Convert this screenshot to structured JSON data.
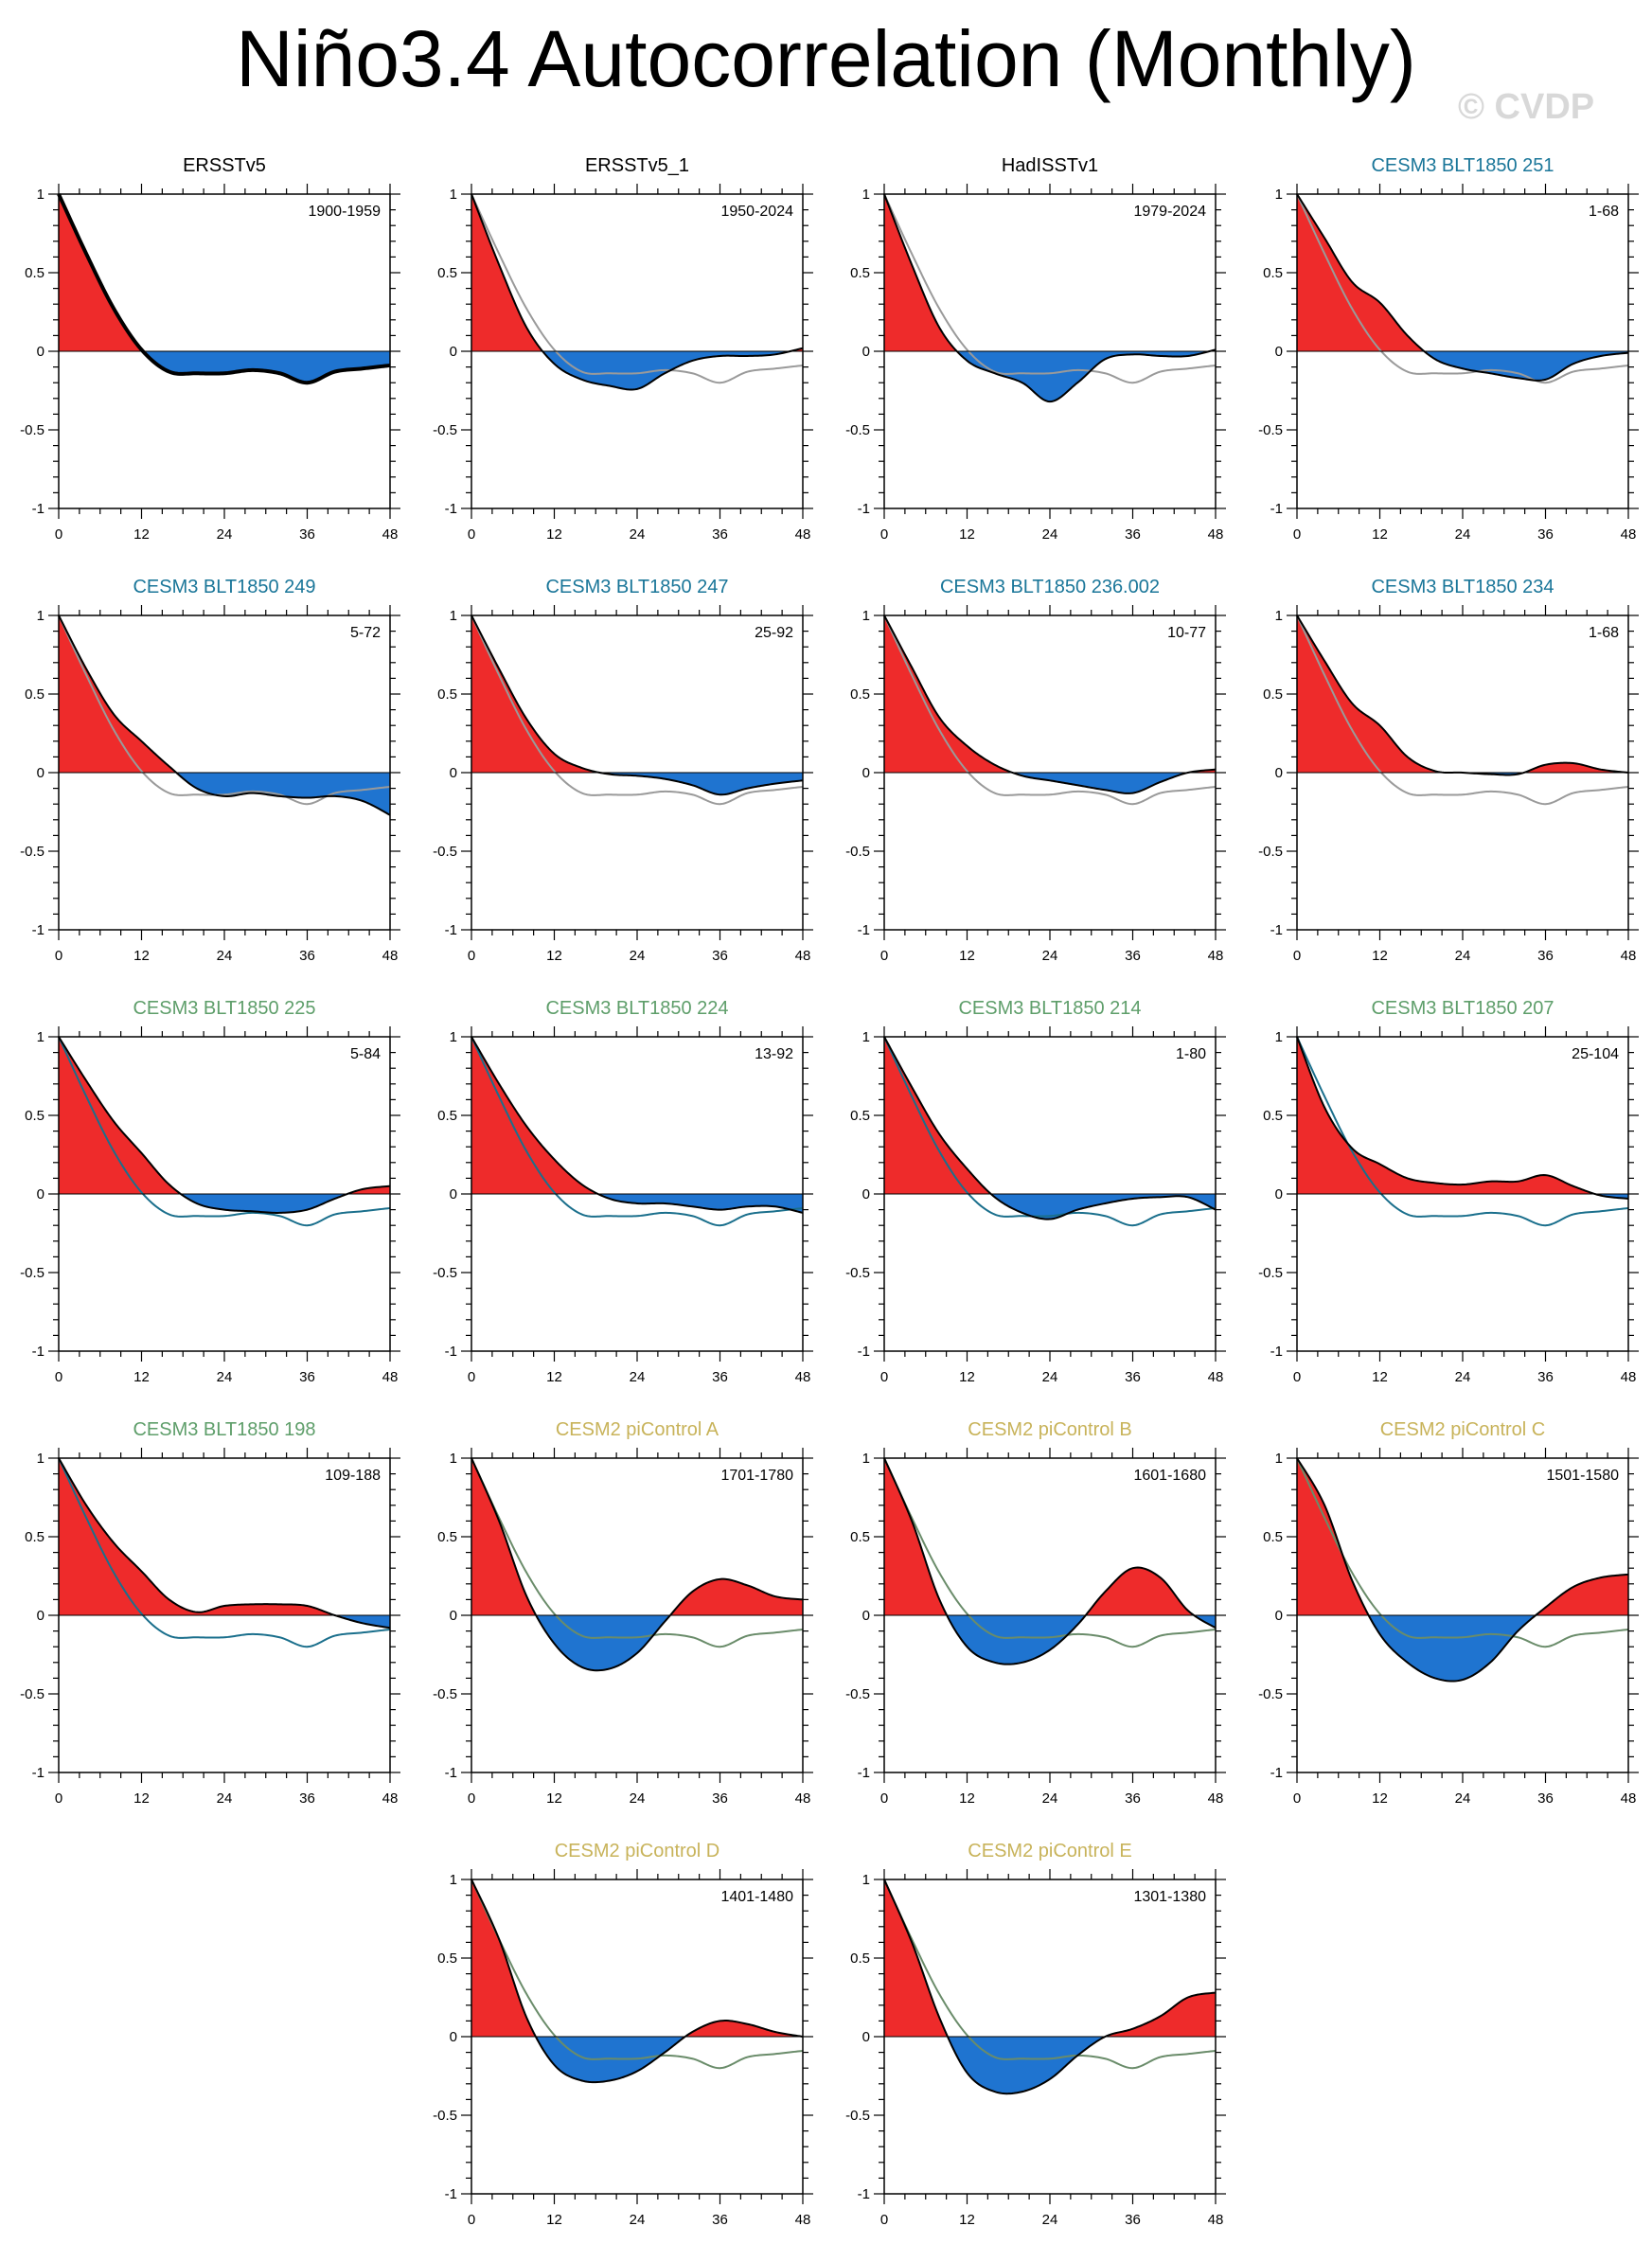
{
  "page": {
    "title": "Niño3.4 Autocorrelation (Monthly)",
    "watermark": "© CVDP"
  },
  "colors": {
    "positive": "#ee2b2b",
    "negative": "#1f74d0",
    "obs": "#000000",
    "ref_gray": "#9a9a9a",
    "ref_teal": "#1a6f8c",
    "ref_green": "#6a8c6a",
    "title_teal": "#1a7699",
    "title_green": "#5e9e6a",
    "title_gold": "#c8b35a"
  },
  "chart_data": {
    "type": "area",
    "xlim": [
      0,
      48
    ],
    "ylim": [
      -1,
      1
    ],
    "xticks": [
      "0",
      "12",
      "24",
      "36",
      "48"
    ],
    "yticks": [
      "1",
      "0.5",
      "0",
      "-0.5",
      "-1"
    ],
    "x": [
      0,
      4,
      8,
      12,
      16,
      20,
      24,
      28,
      32,
      36,
      40,
      44,
      48
    ],
    "reference_series": {
      "name": "ERSSTv5 1900-1959",
      "values": [
        1.0,
        0.62,
        0.27,
        0.01,
        -0.13,
        -0.14,
        -0.14,
        -0.12,
        -0.14,
        -0.2,
        -0.13,
        -0.11,
        -0.09
      ]
    },
    "panels": [
      {
        "title": "ERSSTv5",
        "period": "1900-1959",
        "title_color": "black",
        "ref": "none",
        "thick": true,
        "values": [
          1.0,
          0.62,
          0.27,
          0.01,
          -0.13,
          -0.14,
          -0.14,
          -0.12,
          -0.14,
          -0.2,
          -0.13,
          -0.11,
          -0.09
        ]
      },
      {
        "title": "ERSSTv5_1",
        "period": "1950-2024",
        "title_color": "black",
        "ref": "gray",
        "values": [
          1.0,
          0.55,
          0.15,
          -0.08,
          -0.18,
          -0.22,
          -0.24,
          -0.14,
          -0.06,
          -0.03,
          -0.03,
          -0.02,
          0.02
        ]
      },
      {
        "title": "HadISSTv1",
        "period": "1979-2024",
        "title_color": "black",
        "ref": "gray",
        "values": [
          1.0,
          0.55,
          0.15,
          -0.06,
          -0.14,
          -0.2,
          -0.32,
          -0.2,
          -0.05,
          -0.02,
          -0.03,
          -0.03,
          0.01
        ]
      },
      {
        "title": "CESM3 BLT1850 251",
        "period": "1-68",
        "title_color": "teal",
        "ref": "gray",
        "values": [
          1.0,
          0.72,
          0.44,
          0.31,
          0.1,
          -0.05,
          -0.11,
          -0.14,
          -0.17,
          -0.18,
          -0.08,
          -0.03,
          -0.01
        ]
      },
      {
        "title": "CESM3 BLT1850 249",
        "period": "5-72",
        "title_color": "teal",
        "ref": "gray",
        "values": [
          1.0,
          0.66,
          0.37,
          0.2,
          0.04,
          -0.1,
          -0.15,
          -0.13,
          -0.15,
          -0.16,
          -0.15,
          -0.18,
          -0.27
        ]
      },
      {
        "title": "CESM3 BLT1850 247",
        "period": "25-92",
        "title_color": "teal",
        "ref": "gray",
        "values": [
          1.0,
          0.66,
          0.34,
          0.12,
          0.03,
          -0.01,
          -0.02,
          -0.04,
          -0.08,
          -0.14,
          -0.1,
          -0.07,
          -0.05
        ]
      },
      {
        "title": "CESM3 BLT1850 236.002",
        "period": "10-77",
        "title_color": "teal",
        "ref": "gray",
        "values": [
          1.0,
          0.67,
          0.35,
          0.17,
          0.05,
          -0.02,
          -0.05,
          -0.08,
          -0.11,
          -0.13,
          -0.06,
          0.0,
          0.02
        ]
      },
      {
        "title": "CESM3 BLT1850 234",
        "period": "1-68",
        "title_color": "teal",
        "ref": "gray",
        "values": [
          1.0,
          0.71,
          0.44,
          0.3,
          0.1,
          0.01,
          0.0,
          -0.01,
          -0.01,
          0.05,
          0.06,
          0.02,
          0.0
        ]
      },
      {
        "title": "CESM3 BLT1850 225",
        "period": "5-84",
        "title_color": "green",
        "ref": "teal",
        "values": [
          1.0,
          0.72,
          0.46,
          0.26,
          0.06,
          -0.06,
          -0.1,
          -0.11,
          -0.12,
          -0.1,
          -0.03,
          0.03,
          0.05
        ]
      },
      {
        "title": "CESM3 BLT1850 224",
        "period": "13-92",
        "title_color": "green",
        "ref": "teal",
        "values": [
          1.0,
          0.7,
          0.43,
          0.22,
          0.06,
          -0.03,
          -0.06,
          -0.06,
          -0.08,
          -0.1,
          -0.08,
          -0.08,
          -0.12
        ]
      },
      {
        "title": "CESM3 BLT1850 214",
        "period": "1-80",
        "title_color": "green",
        "ref": "teal",
        "values": [
          1.0,
          0.68,
          0.38,
          0.16,
          -0.02,
          -0.12,
          -0.16,
          -0.1,
          -0.06,
          -0.03,
          -0.02,
          -0.02,
          -0.1
        ]
      },
      {
        "title": "CESM3 BLT1850 207",
        "period": "25-104",
        "title_color": "green",
        "ref": "teal",
        "values": [
          1.0,
          0.55,
          0.29,
          0.19,
          0.1,
          0.07,
          0.06,
          0.08,
          0.08,
          0.12,
          0.05,
          -0.01,
          -0.03
        ]
      },
      {
        "title": "CESM3 BLT1850 198",
        "period": "109-188",
        "title_color": "green",
        "ref": "teal",
        "values": [
          1.0,
          0.7,
          0.46,
          0.28,
          0.1,
          0.02,
          0.06,
          0.07,
          0.07,
          0.06,
          0.0,
          -0.05,
          -0.08
        ]
      },
      {
        "title": "CESM2 piControl A",
        "period": "1701-1780",
        "title_color": "gold",
        "ref": "green",
        "values": [
          1.0,
          0.6,
          0.12,
          -0.18,
          -0.33,
          -0.34,
          -0.24,
          -0.04,
          0.15,
          0.23,
          0.19,
          0.12,
          0.1
        ]
      },
      {
        "title": "CESM2 piControl B",
        "period": "1601-1680",
        "title_color": "gold",
        "ref": "green",
        "values": [
          1.0,
          0.6,
          0.1,
          -0.2,
          -0.3,
          -0.3,
          -0.22,
          -0.06,
          0.15,
          0.3,
          0.24,
          0.03,
          -0.08
        ]
      },
      {
        "title": "CESM2 piControl C",
        "period": "1501-1580",
        "title_color": "gold",
        "ref": "green",
        "values": [
          1.0,
          0.7,
          0.22,
          -0.12,
          -0.3,
          -0.4,
          -0.41,
          -0.3,
          -0.1,
          0.05,
          0.18,
          0.24,
          0.26
        ]
      },
      {
        "title": "CESM2 piControl D",
        "period": "1401-1480",
        "title_color": "gold",
        "ref": "green",
        "values": [
          1.0,
          0.62,
          0.12,
          -0.18,
          -0.28,
          -0.28,
          -0.22,
          -0.1,
          0.03,
          0.1,
          0.08,
          0.03,
          0.0
        ]
      },
      {
        "title": "CESM2 piControl E",
        "period": "1301-1380",
        "title_color": "gold",
        "ref": "green",
        "values": [
          1.0,
          0.6,
          0.12,
          -0.23,
          -0.35,
          -0.35,
          -0.27,
          -0.12,
          0.0,
          0.05,
          0.13,
          0.25,
          0.28
        ]
      }
    ]
  }
}
